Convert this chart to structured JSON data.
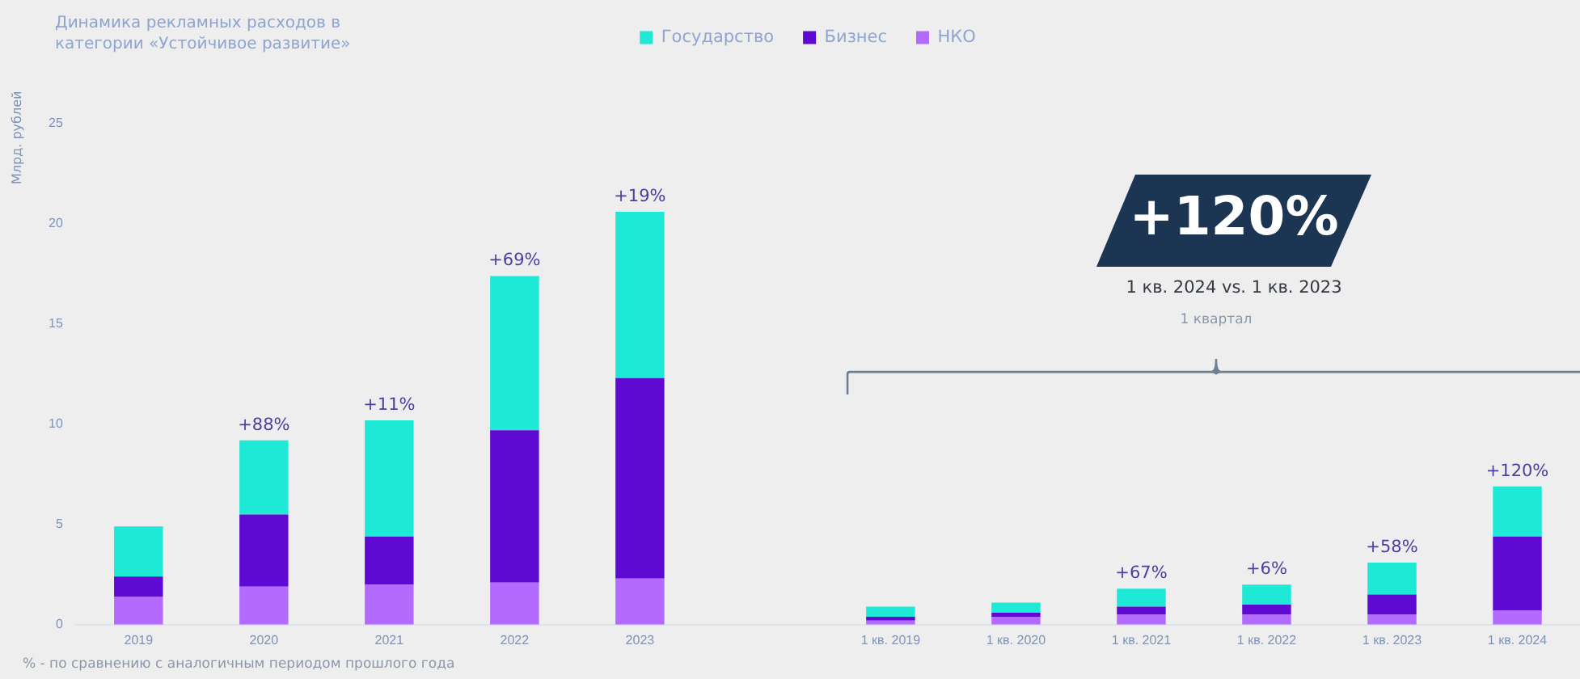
{
  "chart_data": {
    "type": "bar",
    "stacked": true,
    "title": "Динамика рекламных расходов в категории «Устойчивое развитие»",
    "ylabel": "Млрд. рублей",
    "categories": [
      "2019",
      "2020",
      "2021",
      "2022",
      "2023",
      null,
      "1 кв. 2019",
      "1 кв. 2020",
      "1 кв. 2021",
      "1 кв. 2022",
      "1 кв. 2023",
      "1 кв. 2024"
    ],
    "series": [
      {
        "name": "НКО",
        "color": "#b36bff",
        "values": [
          1.4,
          1.9,
          2.0,
          2.1,
          2.3,
          null,
          0.2,
          0.4,
          0.5,
          0.5,
          0.5,
          0.7
        ]
      },
      {
        "name": "Бизнес",
        "color": "#5f0ad2",
        "values": [
          1.0,
          3.6,
          2.4,
          7.6,
          10.0,
          null,
          0.2,
          0.2,
          0.4,
          0.5,
          1.0,
          3.7
        ]
      },
      {
        "name": "Государство",
        "color": "#1de9d6",
        "values": [
          2.5,
          3.7,
          5.8,
          7.7,
          8.3,
          null,
          0.5,
          0.5,
          0.9,
          1.0,
          1.6,
          2.5
        ]
      }
    ],
    "ylim": [
      0,
      25
    ],
    "yticks": [
      0,
      5,
      10,
      15,
      20,
      25
    ],
    "grid": false,
    "legend": "top",
    "annotations": [
      "+120%",
      "1 кв. 2024 vs. 1 кв. 2023",
      "1 квартал",
      "% - по сравнению с аналогичным периодом прошлого года",
      {
        "text": "+88%",
        "x": "2020",
        "y": 9.2
      },
      {
        "text": "+11%",
        "x": "2021",
        "y": 10.2
      },
      {
        "text": "+69%",
        "x": "2022",
        "y": 17.4
      },
      {
        "text": "+19%",
        "x": "2023",
        "y": 20.6
      },
      {
        "text": "+67%",
        "x": "1 кв. 2021",
        "y": 1.8
      },
      {
        "text": "+6%",
        "x": "1 кв. 2022",
        "y": 2.0
      },
      {
        "text": "+58%",
        "x": "1 кв. 2023",
        "y": 3.1
      },
      {
        "text": "+120%",
        "x": "1 кв. 2024",
        "y": 6.9
      }
    ]
  }
}
